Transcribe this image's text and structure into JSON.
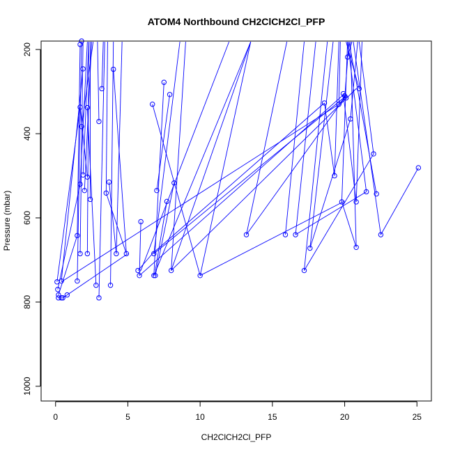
{
  "chart_data": {
    "type": "scatter",
    "title": "ATOM4 Northbound CH2ClCH2Cl_PFP",
    "xlabel": "CH2ClCH2Cl_PFP",
    "ylabel": "Pressure (mbar)",
    "xlim": [
      -1,
      26
    ],
    "ylim": [
      1035,
      180
    ],
    "y_reversed": true,
    "xticks": [
      0,
      5,
      10,
      15,
      20,
      25
    ],
    "yticks": [
      200,
      400,
      600,
      800,
      1000
    ],
    "grid": false,
    "legend": "none",
    "color": "#0000ff",
    "marker": "open-circle",
    "connected": true,
    "points": [
      {
        "x": 0.2,
        "y": 790
      },
      {
        "x": 0.2,
        "y": 783
      },
      {
        "x": 0.15,
        "y": 770
      },
      {
        "x": 0.1,
        "y": 752
      },
      {
        "x": 0.4,
        "y": 790
      },
      {
        "x": 0.5,
        "y": 790
      },
      {
        "x": 0.8,
        "y": 783
      },
      {
        "x": 0.4,
        "y": 750
      },
      {
        "x": 1.5,
        "y": 750
      },
      {
        "x": 1.5,
        "y": 642
      },
      {
        "x": 1.7,
        "y": 685
      },
      {
        "x": 1.7,
        "y": 520
      },
      {
        "x": 1.9,
        "y": 498
      },
      {
        "x": 2.0,
        "y": 535
      },
      {
        "x": 2.2,
        "y": 503
      },
      {
        "x": 2.4,
        "y": 556
      },
      {
        "x": 2.2,
        "y": 685
      },
      {
        "x": 1.7,
        "y": 337
      },
      {
        "x": 1.8,
        "y": 383
      },
      {
        "x": 1.9,
        "y": 246
      },
      {
        "x": 1.7,
        "y": 188
      },
      {
        "x": 1.8,
        "y": 180
      },
      {
        "x": 2.2,
        "y": 338
      },
      {
        "x": 3.0,
        "y": 371
      },
      {
        "x": 3.2,
        "y": 293
      },
      {
        "x": 2.8,
        "y": 760
      },
      {
        "x": 3.0,
        "y": 790
      },
      {
        "x": 3.5,
        "y": 541
      },
      {
        "x": 3.7,
        "y": 515
      },
      {
        "x": 3.8,
        "y": 760
      },
      {
        "x": 4.0,
        "y": 247
      },
      {
        "x": 4.2,
        "y": 685
      },
      {
        "x": 4.9,
        "y": 685
      },
      {
        "x": 5.9,
        "y": 609
      },
      {
        "x": 5.7,
        "y": 725
      },
      {
        "x": 5.8,
        "y": 737
      },
      {
        "x": 6.7,
        "y": 330
      },
      {
        "x": 6.8,
        "y": 685
      },
      {
        "x": 6.8,
        "y": 737
      },
      {
        "x": 6.9,
        "y": 737
      },
      {
        "x": 7.0,
        "y": 535
      },
      {
        "x": 7.5,
        "y": 278
      },
      {
        "x": 7.7,
        "y": 561
      },
      {
        "x": 7.9,
        "y": 307
      },
      {
        "x": 8.0,
        "y": 725
      },
      {
        "x": 8.2,
        "y": 517
      },
      {
        "x": 10.0,
        "y": 737
      },
      {
        "x": 13.2,
        "y": 640
      },
      {
        "x": 15.9,
        "y": 640
      },
      {
        "x": 16.6,
        "y": 640
      },
      {
        "x": 17.2,
        "y": 725
      },
      {
        "x": 17.6,
        "y": 672
      },
      {
        "x": 18.6,
        "y": 327
      },
      {
        "x": 19.3,
        "y": 500
      },
      {
        "x": 19.6,
        "y": 330
      },
      {
        "x": 19.8,
        "y": 562
      },
      {
        "x": 19.9,
        "y": 305
      },
      {
        "x": 20.0,
        "y": 310
      },
      {
        "x": 20.1,
        "y": 315
      },
      {
        "x": 20.2,
        "y": 218
      },
      {
        "x": 20.4,
        "y": 365
      },
      {
        "x": 20.8,
        "y": 562
      },
      {
        "x": 20.8,
        "y": 670
      },
      {
        "x": 21.0,
        "y": 293
      },
      {
        "x": 21.5,
        "y": 538
      },
      {
        "x": 22.0,
        "y": 448
      },
      {
        "x": 22.2,
        "y": 543
      },
      {
        "x": 22.5,
        "y": 640
      },
      {
        "x": 25.1,
        "y": 481
      }
    ],
    "segments": [
      [
        [
          0.2,
          790
        ],
        [
          0.4,
          790
        ]
      ],
      [
        [
          0.4,
          790
        ],
        [
          0.5,
          790
        ]
      ],
      [
        [
          0.5,
          790
        ],
        [
          0.8,
          783
        ]
      ],
      [
        [
          0.8,
          783
        ],
        [
          5.0,
          685
        ]
      ],
      [
        [
          0.2,
          783
        ],
        [
          1.5,
          642
        ]
      ],
      [
        [
          0.15,
          770
        ],
        [
          1.7,
          520
        ]
      ],
      [
        [
          0.1,
          752
        ],
        [
          1.7,
          337
        ]
      ],
      [
        [
          0.4,
          750
        ],
        [
          1.9,
          246
        ]
      ],
      [
        [
          1.5,
          750
        ],
        [
          1.8,
          180
        ]
      ],
      [
        [
          1.5,
          642
        ],
        [
          1.7,
          188
        ]
      ],
      [
        [
          1.7,
          685
        ],
        [
          1.9,
          180
        ]
      ],
      [
        [
          1.7,
          520
        ],
        [
          2.2,
          180
        ]
      ],
      [
        [
          1.9,
          498
        ],
        [
          2.3,
          180
        ]
      ],
      [
        [
          2.0,
          535
        ],
        [
          2.5,
          180
        ]
      ],
      [
        [
          2.2,
          503
        ],
        [
          1.7,
          337
        ]
      ],
      [
        [
          2.4,
          556
        ],
        [
          2.4,
          180
        ]
      ],
      [
        [
          2.2,
          685
        ],
        [
          2.3,
          180
        ]
      ],
      [
        [
          1.8,
          383
        ],
        [
          2.6,
          180
        ]
      ],
      [
        [
          2.2,
          338
        ],
        [
          2.8,
          760
        ]
      ],
      [
        [
          3.0,
          371
        ],
        [
          2.9,
          180
        ]
      ],
      [
        [
          3.2,
          293
        ],
        [
          3.3,
          180
        ]
      ],
      [
        [
          3.0,
          790
        ],
        [
          3.4,
          180
        ]
      ],
      [
        [
          3.5,
          541
        ],
        [
          3.6,
          180
        ]
      ],
      [
        [
          3.7,
          515
        ],
        [
          4.2,
          685
        ]
      ],
      [
        [
          3.8,
          760
        ],
        [
          4.0,
          180
        ]
      ],
      [
        [
          4.9,
          685
        ],
        [
          4.0,
          247
        ]
      ],
      [
        [
          4.2,
          685
        ],
        [
          4.6,
          180
        ]
      ],
      [
        [
          3.5,
          541
        ],
        [
          4.9,
          685
        ]
      ],
      [
        [
          5.8,
          737
        ],
        [
          5.9,
          609
        ]
      ],
      [
        [
          5.7,
          725
        ],
        [
          6.7,
          685
        ]
      ],
      [
        [
          6.7,
          330
        ],
        [
          10.0,
          737
        ]
      ],
      [
        [
          6.8,
          685
        ],
        [
          8.6,
          180
        ]
      ],
      [
        [
          6.8,
          737
        ],
        [
          7.5,
          278
        ]
      ],
      [
        [
          6.9,
          737
        ],
        [
          8.2,
          517
        ]
      ],
      [
        [
          7.0,
          535
        ],
        [
          7.9,
          307
        ]
      ],
      [
        [
          7.7,
          561
        ],
        [
          6.9,
          725
        ]
      ],
      [
        [
          8.0,
          725
        ],
        [
          9.0,
          180
        ]
      ],
      [
        [
          10.0,
          737
        ],
        [
          13.5,
          180
        ]
      ],
      [
        [
          13.2,
          640
        ],
        [
          16.0,
          180
        ]
      ],
      [
        [
          8.0,
          725
        ],
        [
          13.5,
          180
        ]
      ],
      [
        [
          6.8,
          737
        ],
        [
          13.5,
          180
        ]
      ],
      [
        [
          5.9,
          725
        ],
        [
          12.0,
          180
        ]
      ],
      [
        [
          10.0,
          737
        ],
        [
          20.0,
          560
        ]
      ],
      [
        [
          6.8,
          685
        ],
        [
          20.1,
          310
        ]
      ],
      [
        [
          5.8,
          737
        ],
        [
          20.0,
          305
        ]
      ],
      [
        [
          0.4,
          752
        ],
        [
          19.6,
          330
        ]
      ],
      [
        [
          13.2,
          640
        ],
        [
          20.0,
          315
        ]
      ],
      [
        [
          15.9,
          640
        ],
        [
          17.2,
          180
        ]
      ],
      [
        [
          16.6,
          640
        ],
        [
          18.0,
          180
        ]
      ],
      [
        [
          17.2,
          725
        ],
        [
          18.8,
          180
        ]
      ],
      [
        [
          17.6,
          672
        ],
        [
          19.2,
          180
        ]
      ],
      [
        [
          17.6,
          672
        ],
        [
          20.4,
          365
        ]
      ],
      [
        [
          19.3,
          500
        ],
        [
          19.6,
          180
        ]
      ],
      [
        [
          19.6,
          330
        ],
        [
          19.7,
          180
        ]
      ],
      [
        [
          18.6,
          327
        ],
        [
          19.3,
          500
        ]
      ],
      [
        [
          19.8,
          562
        ],
        [
          20.2,
          180
        ]
      ],
      [
        [
          19.8,
          562
        ],
        [
          20.8,
          670
        ]
      ],
      [
        [
          20.0,
          315
        ],
        [
          20.3,
          180
        ]
      ],
      [
        [
          20.2,
          218
        ],
        [
          20.5,
          180
        ]
      ],
      [
        [
          20.4,
          365
        ],
        [
          20.9,
          180
        ]
      ],
      [
        [
          20.8,
          562
        ],
        [
          21.2,
          180
        ]
      ],
      [
        [
          20.8,
          670
        ],
        [
          20.4,
          180
        ]
      ],
      [
        [
          21.0,
          293
        ],
        [
          20.1,
          180
        ]
      ],
      [
        [
          21.5,
          538
        ],
        [
          20.2,
          180
        ]
      ],
      [
        [
          22.0,
          448
        ],
        [
          21.0,
          180
        ]
      ],
      [
        [
          22.2,
          543
        ],
        [
          20.3,
          180
        ]
      ],
      [
        [
          22.5,
          640
        ],
        [
          20.6,
          180
        ]
      ],
      [
        [
          25.1,
          481
        ],
        [
          22.5,
          640
        ]
      ],
      [
        [
          21.5,
          538
        ],
        [
          16.6,
          640
        ]
      ],
      [
        [
          22.0,
          448
        ],
        [
          17.2,
          725
        ]
      ],
      [
        [
          19.9,
          305
        ],
        [
          20.8,
          562
        ]
      ],
      [
        [
          20.1,
          310
        ],
        [
          19.6,
          330
        ]
      ],
      [
        [
          20.8,
          293
        ],
        [
          8.0,
          725
        ]
      ],
      [
        [
          18.6,
          327
        ],
        [
          6.7,
          685
        ]
      ]
    ]
  }
}
